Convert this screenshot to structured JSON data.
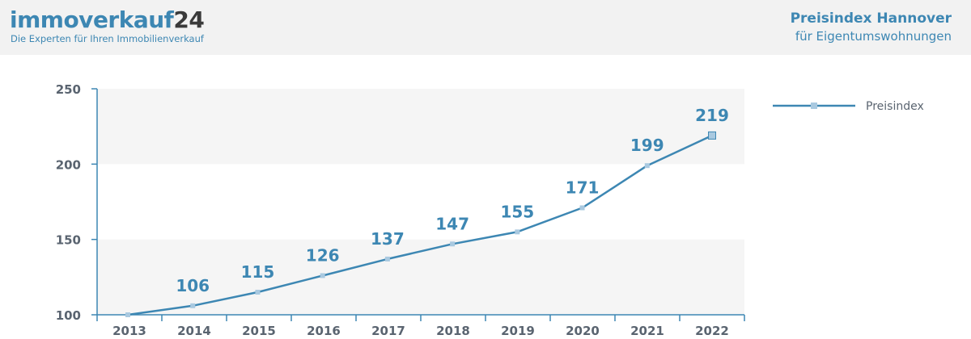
{
  "header": {
    "brand_part1": "immoverkauf",
    "brand_part2": "24",
    "tagline": "Die Experten für Ihren Immobilienverkauf",
    "title": "Preisindex Hannover",
    "subtitle": "für Eigentumswohnungen"
  },
  "colors": {
    "accent": "#3d87b3",
    "marker": "#a9c9e0",
    "band": "#f5f5f5",
    "axis_text": "#5a6470"
  },
  "chart_data": {
    "type": "line",
    "title": "Preisindex Hannover",
    "subtitle": "für Eigentumswohnungen",
    "xlabel": "",
    "ylabel": "",
    "categories": [
      "2013",
      "2014",
      "2015",
      "2016",
      "2017",
      "2018",
      "2019",
      "2020",
      "2021",
      "2022"
    ],
    "series": [
      {
        "name": "Preisindex",
        "values": [
          100,
          106,
          115,
          126,
          137,
          147,
          155,
          171,
          199,
          219
        ]
      }
    ],
    "data_labels": [
      "",
      "106",
      "115",
      "126",
      "137",
      "147",
      "155",
      "171",
      "199",
      "219"
    ],
    "ylim": [
      100,
      250
    ],
    "yticks": [
      100,
      150,
      200,
      250
    ],
    "legend_position": "top-right"
  }
}
